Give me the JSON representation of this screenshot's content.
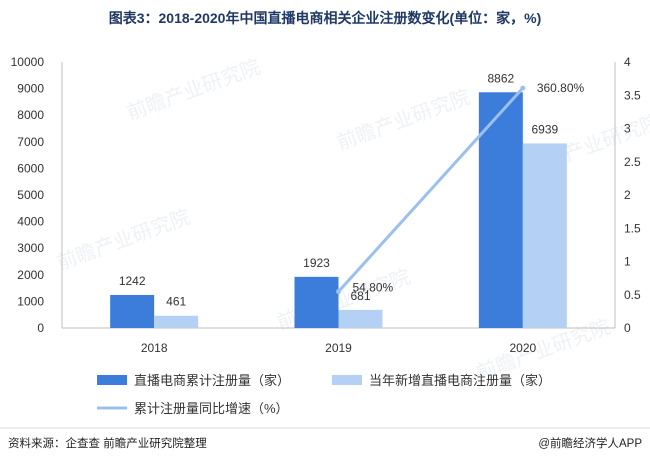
{
  "title": "图表3：2018-2020年中国直播电商相关企业注册数变化(单位：家，%)",
  "source": "资料来源：企查查 前瞻产业研究院整理",
  "credit": "@前瞻经济学人APP",
  "watermark": "前瞻产业研究院",
  "colors": {
    "series1": "#3c7ddb",
    "series2": "#b4d1f5",
    "line": "#9cc0ec",
    "axis": "#bfbfbf"
  },
  "chart_data": {
    "type": "bar",
    "categories": [
      "2018",
      "2019",
      "2020"
    ],
    "ylim": [
      0,
      10000
    ],
    "yticks": [
      "0",
      "1000",
      "2000",
      "3000",
      "4000",
      "5000",
      "6000",
      "7000",
      "8000",
      "9000",
      "10000"
    ],
    "y2lim": [
      0,
      4
    ],
    "y2ticks": [
      "0",
      "0.5",
      "1",
      "1.5",
      "2",
      "2.5",
      "3",
      "3.5",
      "4"
    ],
    "series": [
      {
        "name": "直播电商累计注册量（家）",
        "values": [
          1242,
          1923,
          8862
        ],
        "labels": [
          "1242",
          "1923",
          "8862"
        ],
        "axis": "left"
      },
      {
        "name": "当年新增直播电商注册量（家）",
        "values": [
          461,
          681,
          6939
        ],
        "labels": [
          "461",
          "681",
          "6939"
        ],
        "axis": "left"
      }
    ],
    "line_series": {
      "name": "累计注册量同比增速（%）",
      "type": "line",
      "axis": "right",
      "points": [
        {
          "x": "2019",
          "y": 0.548,
          "label": "54.80%"
        },
        {
          "x": "2020",
          "y": 3.608,
          "label": "360.80%"
        }
      ]
    },
    "legend": "bottom"
  }
}
